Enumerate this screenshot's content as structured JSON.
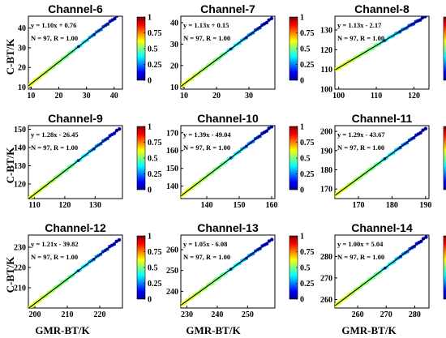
{
  "figure": {
    "xlabel": "GMR-BT/K",
    "ylabel": "C-BT/K",
    "colorbar_ticks": [
      "0",
      "0.25",
      "0.5",
      "0.75",
      "1"
    ],
    "colormap": "jet"
  },
  "chart_data": [
    {
      "type": "scatter",
      "title": "Channel-6",
      "equation": "y = 1.10x + 0.76",
      "stats": "N = 97, R = 1.00",
      "xlim": [
        9,
        43
      ],
      "ylim": [
        9,
        46
      ],
      "xticks": [
        10,
        20,
        30,
        40
      ],
      "yticks": [
        10,
        20,
        30,
        40
      ],
      "slope": 1.1,
      "intercept": 0.76,
      "x_range": [
        9,
        42
      ]
    },
    {
      "type": "scatter",
      "title": "Channel-7",
      "equation": "y = 1.13x + 0.15",
      "stats": "N = 97, R = 1.00",
      "xlim": [
        9,
        38
      ],
      "ylim": [
        9,
        43
      ],
      "xticks": [
        10,
        20,
        30
      ],
      "yticks": [
        10,
        20,
        30,
        40
      ],
      "slope": 1.13,
      "intercept": 0.15,
      "x_range": [
        9,
        37
      ]
    },
    {
      "type": "scatter",
      "title": "Channel-8",
      "equation": "y = 1.13x - 2.17",
      "stats": "N = 97, R = 1.00",
      "xlim": [
        99,
        124
      ],
      "ylim": [
        100,
        137
      ],
      "xticks": [
        100,
        110,
        120
      ],
      "yticks": [
        100,
        110,
        120,
        130
      ],
      "slope": 1.13,
      "intercept": -2.17,
      "x_range": [
        99,
        123
      ]
    },
    {
      "type": "scatter",
      "title": "Channel-9",
      "equation": "y = 1.28x - 26.45",
      "stats": "N = 97, R = 1.00",
      "xlim": [
        108,
        139
      ],
      "ylim": [
        112,
        152
      ],
      "xticks": [
        110,
        120,
        130
      ],
      "yticks": [
        120,
        130,
        140,
        150
      ],
      "slope": 1.28,
      "intercept": -26.45,
      "x_range": [
        108,
        138
      ]
    },
    {
      "type": "scatter",
      "title": "Channel-10",
      "equation": "y = 1.39x - 49.04",
      "stats": "N = 97, R = 1.00",
      "xlim": [
        132,
        161
      ],
      "ylim": [
        133,
        174
      ],
      "xticks": [
        140,
        150,
        160
      ],
      "yticks": [
        140,
        150,
        160,
        170
      ],
      "slope": 1.39,
      "intercept": -49.04,
      "x_range": [
        132,
        160
      ]
    },
    {
      "type": "scatter",
      "title": "Channel-11",
      "equation": "y = 1.29x - 43.67",
      "stats": "N = 97, R = 1.00",
      "xlim": [
        163,
        191
      ],
      "ylim": [
        165,
        203
      ],
      "xticks": [
        170,
        180,
        190
      ],
      "yticks": [
        170,
        180,
        190,
        200
      ],
      "slope": 1.29,
      "intercept": -43.67,
      "x_range": [
        163,
        190
      ]
    },
    {
      "type": "scatter",
      "title": "Channel-12",
      "equation": "y = 1.21x - 39.82",
      "stats": "N = 97, R = 1.00",
      "xlim": [
        198,
        227
      ],
      "ylim": [
        200,
        236
      ],
      "xticks": [
        200,
        210,
        220
      ],
      "yticks": [
        210,
        220,
        230
      ],
      "slope": 1.21,
      "intercept": -39.82,
      "x_range": [
        198,
        226
      ]
    },
    {
      "type": "scatter",
      "title": "Channel-13",
      "equation": "y = 1.05x - 6.08",
      "stats": "N = 97, R = 1.00",
      "xlim": [
        228,
        259
      ],
      "ylim": [
        232,
        267
      ],
      "xticks": [
        230,
        240,
        250
      ],
      "yticks": [
        240,
        250,
        260
      ],
      "slope": 1.05,
      "intercept": -6.08,
      "x_range": [
        228,
        258
      ]
    },
    {
      "type": "scatter",
      "title": "Channel-14",
      "equation": "y = 1.00x + 5.04",
      "stats": "N = 97, R = 1.00",
      "xlim": [
        252,
        285
      ],
      "ylim": [
        256,
        290
      ],
      "xticks": [
        260,
        270,
        280
      ],
      "yticks": [
        260,
        270,
        280
      ],
      "slope": 1.0,
      "intercept": 5.04,
      "x_range": [
        252,
        284
      ]
    }
  ]
}
